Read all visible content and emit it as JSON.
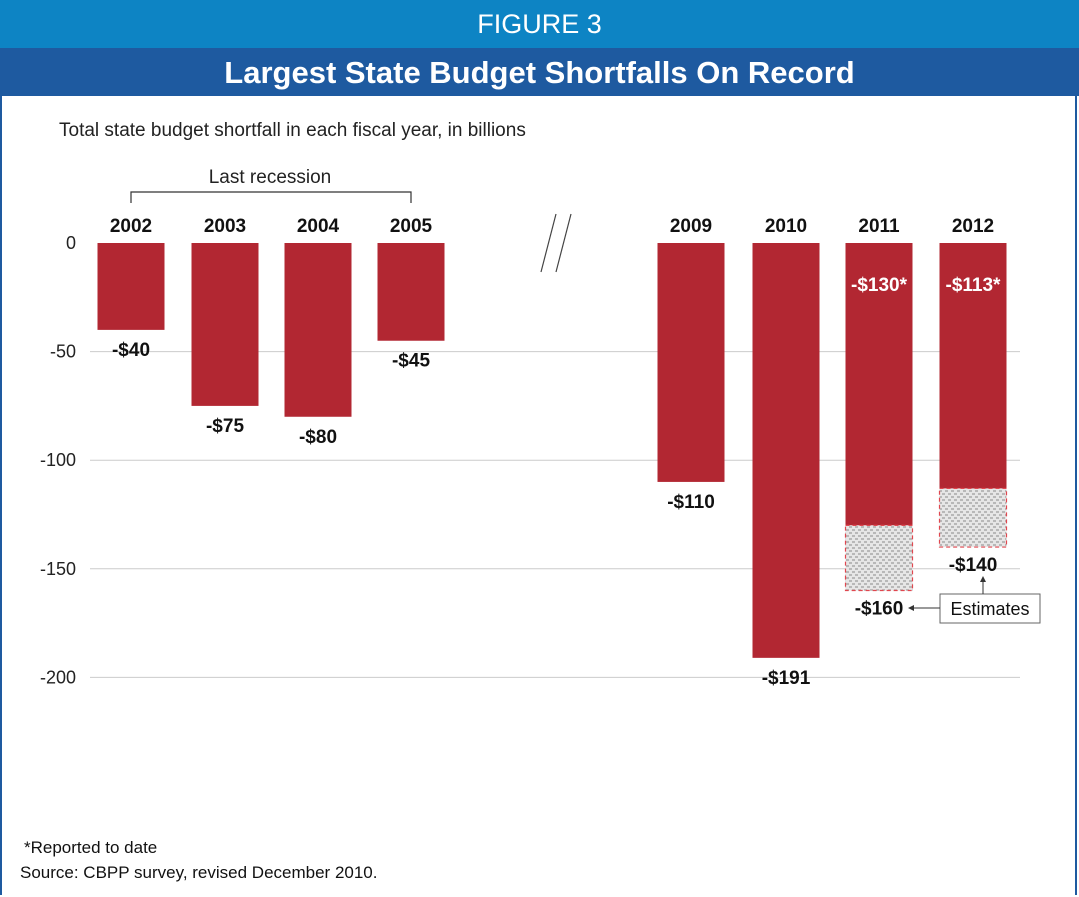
{
  "header": {
    "figure_label": "FIGURE 3",
    "title": "Largest State Budget Shortfalls On Record"
  },
  "chart_data": {
    "type": "bar",
    "subtitle": "Total state budget shortfall in each fiscal year, in billions",
    "bracket_label": "Last recession",
    "bracket_years": [
      "2002",
      "2005"
    ],
    "axis_break": "//",
    "categories": [
      "2002",
      "2003",
      "2004",
      "2005",
      "2009",
      "2010",
      "2011",
      "2012"
    ],
    "values": [
      -40,
      -75,
      -80,
      -45,
      -110,
      -191,
      -130,
      -113
    ],
    "value_labels": [
      "-$40",
      "-$75",
      "-$80",
      "-$45",
      "-$110",
      "-$191",
      "-$130*",
      "-$113*"
    ],
    "estimates": [
      {
        "category": "2011",
        "value": -160,
        "label": "-$160"
      },
      {
        "category": "2012",
        "value": -140,
        "label": "-$140"
      }
    ],
    "estimates_label": "Estimates",
    "yticks": [
      0,
      -50,
      -100,
      -150,
      -200
    ],
    "ylim": [
      -215,
      0
    ],
    "grid": true,
    "colors": {
      "bar": "#b22732",
      "estimate_border": "#e0474f",
      "estimate_fill": "#d4d4d4",
      "grid": "#cccccc"
    }
  },
  "footnote": "*Reported to date",
  "source": "Source: CBPP survey, revised December 2010."
}
